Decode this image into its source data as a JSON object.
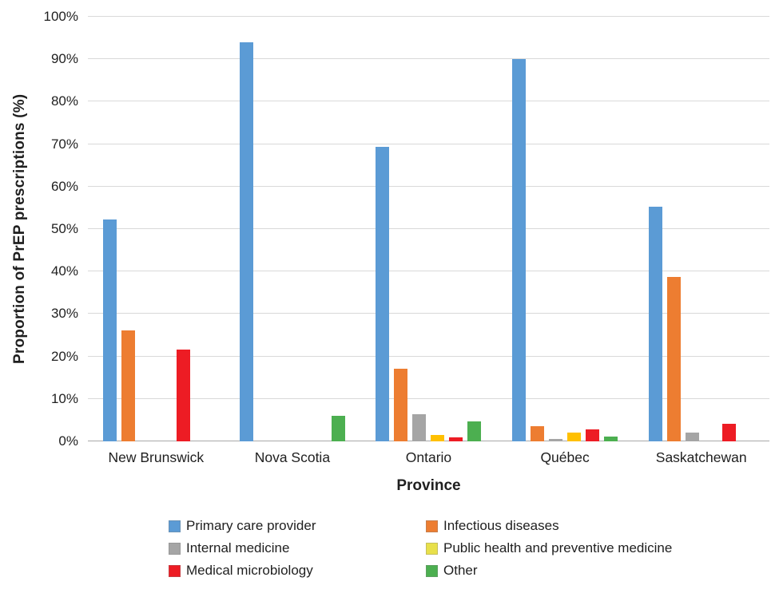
{
  "chart_data": {
    "type": "bar",
    "title": "",
    "xlabel": "Province",
    "ylabel": "Proportion of PrEP prescriptions (%)",
    "categories": [
      "New Brunswick",
      "Nova Scotia",
      "Ontario",
      "Québec",
      "Saskatchewan"
    ],
    "series": [
      {
        "name": "Primary care provider",
        "color": "#5B9BD5",
        "values": [
          52.2,
          94.0,
          69.3,
          90.0,
          55.2
        ]
      },
      {
        "name": "Infectious diseases",
        "color": "#ED7D31",
        "values": [
          26.1,
          0,
          17.2,
          3.5,
          38.8
        ]
      },
      {
        "name": "Internal medicine",
        "color": "#A5A5A5",
        "values": [
          0,
          0,
          6.4,
          0.5,
          2.1
        ]
      },
      {
        "name": "Public health and preventive medicine",
        "color": "#FFC000",
        "legend_color": "#E8E04A",
        "values": [
          0,
          0,
          1.6,
          2.1,
          0
        ]
      },
      {
        "name": "Medical microbiology",
        "color": "#ED1C24",
        "values": [
          21.7,
          0,
          0.9,
          2.8,
          4.1
        ]
      },
      {
        "name": "Other",
        "color": "#4CAF50",
        "values": [
          0,
          6.1,
          4.7,
          1.2,
          0
        ]
      }
    ],
    "y_ticks": [
      "0%",
      "10%",
      "20%",
      "30%",
      "40%",
      "50%",
      "60%",
      "70%",
      "80%",
      "90%",
      "100%"
    ],
    "ylim": [
      0,
      100
    ],
    "grid": true,
    "legend_position": "bottom"
  },
  "colors": {
    "grid": "#D9D9D9",
    "axis": "#A9A9A9",
    "text": "#1F1F1F",
    "background": "#FFFFFF"
  }
}
